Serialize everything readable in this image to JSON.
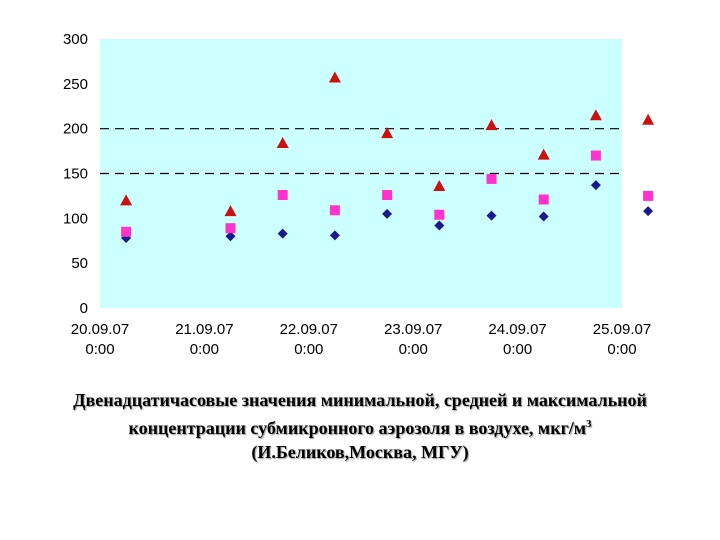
{
  "chart_data": {
    "type": "scatter",
    "x_ticks": [
      "20.09.07 0:00",
      "21.09.07 0:00",
      "22.09.07 0:00",
      "23.09.07 0:00",
      "24.09.07 0:00",
      "25.09.07 0:00"
    ],
    "x_tick_lines": [
      [
        "20.09.07",
        "0:00"
      ],
      [
        "21.09.07",
        "0:00"
      ],
      [
        "22.09.07",
        "0:00"
      ],
      [
        "23.09.07",
        "0:00"
      ],
      [
        "24.09.07",
        "0:00"
      ],
      [
        "25.09.07",
        "0:00"
      ]
    ],
    "y_ticks": [
      0,
      50,
      100,
      150,
      200,
      250,
      300
    ],
    "ylim": [
      0,
      300
    ],
    "xlim": [
      "20.09.07 0:00",
      "25.09.07 0:00"
    ],
    "reference_lines": [
      150,
      200
    ],
    "series": [
      {
        "marker": "diamond",
        "color": "#1a1a8c",
        "points": [
          {
            "x": "20.09.07 06:00",
            "y": 78
          },
          {
            "x": "21.09.07 06:00",
            "y": 80
          },
          {
            "x": "21.09.07 18:00",
            "y": 83
          },
          {
            "x": "22.09.07 06:00",
            "y": 81
          },
          {
            "x": "22.09.07 18:00",
            "y": 105
          },
          {
            "x": "23.09.07 06:00",
            "y": 92
          },
          {
            "x": "23.09.07 18:00",
            "y": 103
          },
          {
            "x": "24.09.07 06:00",
            "y": 102
          },
          {
            "x": "24.09.07 18:00",
            "y": 137
          },
          {
            "x": "25.09.07 06:00",
            "y": 108
          }
        ]
      },
      {
        "marker": "square",
        "color": "#ff33cc",
        "points": [
          {
            "x": "20.09.07 06:00",
            "y": 85
          },
          {
            "x": "21.09.07 06:00",
            "y": 89
          },
          {
            "x": "21.09.07 18:00",
            "y": 126
          },
          {
            "x": "22.09.07 06:00",
            "y": 109
          },
          {
            "x": "22.09.07 18:00",
            "y": 126
          },
          {
            "x": "23.09.07 06:00",
            "y": 104
          },
          {
            "x": "23.09.07 18:00",
            "y": 144
          },
          {
            "x": "24.09.07 06:00",
            "y": 121
          },
          {
            "x": "24.09.07 18:00",
            "y": 170
          },
          {
            "x": "25.09.07 06:00",
            "y": 125
          }
        ]
      },
      {
        "marker": "triangle",
        "color": "#cc1111",
        "points": [
          {
            "x": "20.09.07 06:00",
            "y": 120
          },
          {
            "x": "21.09.07 06:00",
            "y": 108
          },
          {
            "x": "21.09.07 18:00",
            "y": 184
          },
          {
            "x": "22.09.07 06:00",
            "y": 257
          },
          {
            "x": "22.09.07 18:00",
            "y": 195
          },
          {
            "x": "23.09.07 06:00",
            "y": 136
          },
          {
            "x": "23.09.07 18:00",
            "y": 204
          },
          {
            "x": "24.09.07 06:00",
            "y": 171
          },
          {
            "x": "24.09.07 18:00",
            "y": 215
          },
          {
            "x": "25.09.07 06:00",
            "y": 210
          }
        ]
      }
    ],
    "plot_background": "#ccffff",
    "grid": false
  },
  "caption": {
    "line1": "Двенадцатичасовые значения минимальной, средней и максимальной",
    "line2": "концентрации субмикронного аэрозоля в воздухе, мкг/м",
    "line2_sup": "3",
    "line3": "(И.Беликов,Москва, МГУ)"
  }
}
